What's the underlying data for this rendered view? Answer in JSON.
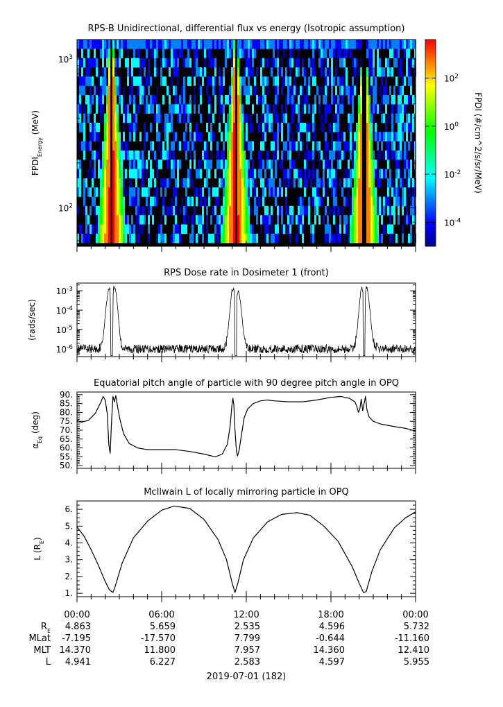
{
  "chart_data": [
    {
      "type": "heatmap",
      "title": "RPS-B  Unidirectional, differential flux vs energy (Isotropic assumption)",
      "ylabel_main": "FPDI",
      "ylabel_sub": "Energy",
      "ylabel_unit": " (MeV)",
      "yscale": "log",
      "ylim": [
        55,
        1350
      ],
      "yticks": [
        {
          "value": 100,
          "base": "10",
          "exp": "2"
        },
        {
          "value": 1000,
          "base": "10",
          "exp": "3"
        }
      ],
      "xlim_hours": [
        0,
        24
      ],
      "energy_top_mev": 1350,
      "energy_bottom_mev": 58,
      "peaks_hours": [
        2.45,
        11.25,
        20.35
      ],
      "gaps_hours": [
        2.45,
        11.25,
        20.35
      ],
      "colorbar": {
        "label": "FPDI (#/cm^2/s/sr/MeV)",
        "scale": "log",
        "range": [
          1e-05,
          4000
        ],
        "ticks": [
          {
            "value": 0.0001,
            "base": "10",
            "exp": "-4"
          },
          {
            "value": 0.01,
            "base": "10",
            "exp": "-2"
          },
          {
            "value": 1,
            "base": "10",
            "exp": "0"
          },
          {
            "value": 100,
            "base": "10",
            "exp": "2"
          }
        ],
        "colors": [
          "#00008b",
          "#0000ff",
          "#0080ff",
          "#00ffff",
          "#00ff80",
          "#00ff00",
          "#80ff00",
          "#ffff00",
          "#ff8000",
          "#ff0000"
        ]
      }
    },
    {
      "type": "line",
      "title": "RPS  Dose rate in Dosimeter 1 (front)",
      "ylabel": "(rads/sec)",
      "yscale": "log",
      "ylim": [
        4e-07,
        0.0025
      ],
      "yticks": [
        {
          "value": 1e-06,
          "base": "10",
          "exp": "-6"
        },
        {
          "value": 1e-05,
          "base": "10",
          "exp": "-5"
        },
        {
          "value": 0.0001,
          "base": "10",
          "exp": "-4"
        },
        {
          "value": 0.001,
          "base": "10",
          "exp": "-3"
        }
      ],
      "xlim_hours": [
        0,
        24
      ],
      "series": [
        {
          "x": [
            0,
            1.5,
            1.75,
            1.85,
            1.95,
            2.05,
            2.15,
            2.25,
            2.32,
            2.37,
            2.38,
            2.53,
            2.54,
            2.6,
            2.66,
            2.76,
            2.86,
            2.96,
            3.06,
            3.16,
            3.35,
            10.35,
            10.58,
            10.7,
            10.8,
            10.9,
            10.98,
            11.1,
            11.17,
            11.18,
            11.32,
            11.33,
            11.42,
            11.5,
            11.6,
            11.7,
            11.8,
            11.92,
            12.05,
            12.2,
            19.5,
            19.65,
            19.8,
            19.9,
            20.0,
            20.1,
            20.2,
            20.27,
            20.28,
            20.42,
            20.43,
            20.5,
            20.55,
            20.65,
            20.75,
            20.85,
            20.95,
            21.1,
            21.4,
            24
          ],
          "y": [
            1e-06,
            1e-06,
            1.5e-06,
            4e-06,
            2e-05,
            0.00012,
            0.0005,
            0.0013,
            0.0014,
            0.0005,
            4.5e-07,
            4.5e-07,
            0.0005,
            0.0016,
            0.0016,
            0.0009,
            0.0002,
            3e-05,
            4e-06,
            1.5e-06,
            1e-06,
            1e-06,
            2e-06,
            8e-06,
            5e-05,
            0.0003,
            0.001,
            0.0013,
            0.0006,
            4.5e-07,
            4.5e-07,
            0.0004,
            0.001,
            0.0008,
            0.0002,
            4e-05,
            8e-06,
            2.5e-06,
            1.3e-06,
            1e-06,
            1e-06,
            1.3e-06,
            4e-06,
            2e-05,
            0.00015,
            0.0008,
            0.0015,
            0.0008,
            4.5e-07,
            4.5e-07,
            0.0006,
            0.0016,
            0.0015,
            0.0006,
            0.00012,
            2e-05,
            4e-06,
            1.5e-06,
            1e-06,
            1e-06
          ]
        }
      ]
    },
    {
      "type": "line",
      "title": "Equatorial pitch angle of particle with 90 degree pitch angle in OPQ",
      "ylabel_main": "α",
      "ylabel_sub": "Eq",
      "ylabel_unit": " (deg)",
      "ylim": [
        48.5,
        91.5
      ],
      "yticks": [
        50,
        55,
        60,
        65,
        70,
        75,
        80,
        85,
        90
      ],
      "xlim_hours": [
        0,
        24
      ],
      "series": [
        {
          "x": [
            0,
            0.3,
            0.8,
            1.3,
            1.7,
            1.85,
            2.0,
            2.15,
            2.25,
            2.35,
            2.45,
            2.55,
            2.65,
            2.75,
            2.82,
            2.9,
            3.05,
            3.3,
            3.7,
            4.3,
            5.0,
            6.0,
            7.0,
            8.0,
            9.0,
            9.8,
            10.3,
            10.65,
            10.85,
            10.98,
            11.05,
            11.12,
            11.2,
            11.3,
            11.38,
            11.5,
            11.65,
            11.85,
            12.1,
            12.5,
            13.0,
            13.5,
            14.0,
            15.0,
            16.0,
            17.0,
            18.0,
            18.7,
            19.3,
            19.7,
            19.85,
            19.95,
            20.05,
            20.15,
            20.25,
            20.35,
            20.45,
            20.55,
            20.7,
            21.0,
            21.5,
            22.5,
            23.3,
            24
          ],
          "y": [
            75.5,
            74.5,
            75.5,
            79.5,
            86.0,
            89.0,
            87.0,
            79.0,
            62.0,
            57.0,
            75.0,
            89.0,
            86.0,
            89.5,
            86.0,
            82.0,
            76.0,
            68.0,
            62.5,
            60.0,
            59.0,
            59.0,
            59.0,
            58.0,
            56.5,
            55.0,
            56.5,
            62.0,
            72.0,
            84.0,
            88.0,
            84.0,
            70.0,
            58.0,
            55.5,
            59.0,
            67.0,
            77.0,
            82.0,
            85.0,
            86.5,
            87.0,
            86.5,
            86.0,
            86.0,
            87.0,
            88.5,
            89.0,
            88.0,
            86.0,
            83.0,
            80.0,
            82.0,
            87.5,
            81.0,
            85.0,
            89.0,
            81.5,
            77.5,
            75.0,
            73.5,
            72.0,
            71.0,
            69.5
          ]
        }
      ]
    },
    {
      "type": "line",
      "title": "McIlwain L of locally mirroring particle in OPQ",
      "ylabel_main": "L (R",
      "ylabel_sub": "E",
      "ylabel_unit": ")",
      "ylim": [
        0.8,
        6.5
      ],
      "yticks": [
        1.0,
        2.0,
        3.0,
        4.0,
        5.0,
        6.0
      ],
      "ytick_labels": [
        "1.",
        "2.",
        "3.",
        "4.",
        "5.",
        "6."
      ],
      "xlim_hours": [
        0,
        24
      ],
      "series": [
        {
          "x": [
            0,
            0.5,
            1.0,
            1.5,
            2.0,
            2.3,
            2.55,
            2.7,
            3.2,
            4.0,
            5.0,
            6.0,
            6.9,
            8.0,
            9.0,
            10.0,
            10.6,
            11.0,
            11.2,
            11.4,
            11.8,
            12.5,
            13.5,
            14.5,
            15.6,
            16.5,
            17.5,
            18.5,
            19.5,
            20.0,
            20.3,
            20.5,
            20.9,
            21.5,
            22.5,
            23.3,
            24
          ],
          "y": [
            4.95,
            4.4,
            3.6,
            2.7,
            1.7,
            1.2,
            1.05,
            1.4,
            2.8,
            4.3,
            5.3,
            5.95,
            6.2,
            6.05,
            5.4,
            4.2,
            3.0,
            1.6,
            1.05,
            1.6,
            3.0,
            4.3,
            5.25,
            5.7,
            5.8,
            5.65,
            5.0,
            4.1,
            2.6,
            1.6,
            1.05,
            1.1,
            2.3,
            3.6,
            4.9,
            5.5,
            5.85
          ]
        }
      ]
    }
  ],
  "time_axis": {
    "ticks": [
      {
        "hour": 0,
        "label": "00:00"
      },
      {
        "hour": 6,
        "label": "06:00"
      },
      {
        "hour": 12,
        "label": "12:00"
      },
      {
        "hour": 18,
        "label": "18:00"
      },
      {
        "hour": 24,
        "label": "00:00"
      }
    ],
    "minor_step_hours": 1,
    "date_label": "2019-07-01 (182)"
  },
  "ephemeris": {
    "rows": [
      {
        "name_main": "R",
        "name_sub": "E",
        "values": [
          "4.863",
          "5.659",
          "2.535",
          "4.596",
          "5.732"
        ]
      },
      {
        "name_main": "MLat",
        "name_sub": "",
        "values": [
          "-7.195",
          "-17.570",
          "7.799",
          "-0.644",
          "-11.160"
        ]
      },
      {
        "name_main": "MLT",
        "name_sub": "",
        "values": [
          "14.370",
          "11.800",
          "7.957",
          "14.360",
          "12.410"
        ]
      },
      {
        "name_main": "L",
        "name_sub": "",
        "values": [
          "4.941",
          "6.227",
          "2.583",
          "4.597",
          "5.955"
        ]
      }
    ]
  }
}
